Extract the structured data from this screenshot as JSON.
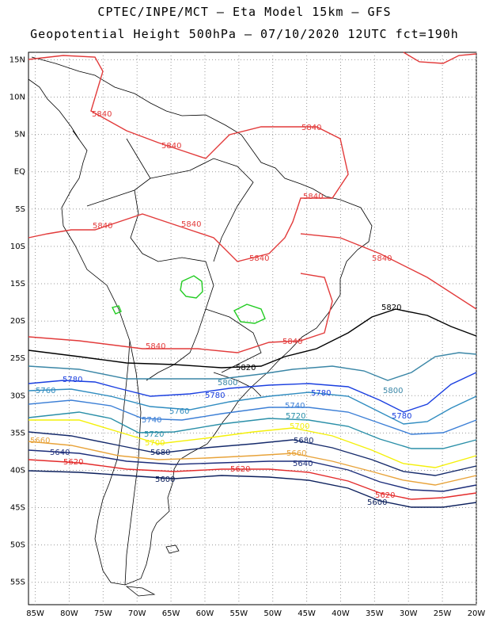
{
  "header": {
    "line1": "CPTEC/INPE/MCT –  Eta Model 15km – GFS",
    "line2": "Geopotential Height 500hPa – 07/10/2020 12UTC fct=190h"
  },
  "axes": {
    "lat_labels": [
      "15N",
      "10N",
      "5N",
      "EQ",
      "5S",
      "10S",
      "15S",
      "20S",
      "25S",
      "30S",
      "35S",
      "40S",
      "45S",
      "50S",
      "55S"
    ],
    "lon_labels": [
      "85W",
      "80W",
      "75W",
      "70W",
      "65W",
      "60W",
      "55W",
      "50W",
      "45W",
      "40W",
      "35W",
      "30W",
      "25W",
      "20W"
    ],
    "lat_range": [
      16,
      -58
    ],
    "lon_range": [
      -86,
      -20
    ],
    "grid": "dotted"
  },
  "contour_colors": {
    "5600": "#0b1f5c",
    "5620": "#e32b2b",
    "5640": "#1c2d7a",
    "5660": "#e8a33a",
    "5680": "#152a6b",
    "5700": "#f4f00a",
    "5720": "#2a8fa8",
    "5740": "#3c7fd6",
    "5760": "#2f8cc0",
    "5780": "#1a3fe0",
    "5800": "#3a86a6",
    "5820": "#000000",
    "5840": "#e23a3a",
    "low_closed": "#22cc22"
  },
  "contours": [
    {
      "value": "5840",
      "color_key": "5840",
      "labels": [
        "5840",
        "5840",
        "5840",
        "5840",
        "5840",
        "5840",
        "5840",
        "5840",
        "5840",
        "5840"
      ]
    },
    {
      "value": "5820",
      "color_key": "5820",
      "labels": [
        "5820",
        "5820"
      ]
    },
    {
      "value": "5800",
      "color_key": "5800",
      "labels": [
        "5800",
        "5800"
      ]
    },
    {
      "value": "5780",
      "color_key": "5780",
      "labels": [
        "5780",
        "5780",
        "5780",
        "5780"
      ]
    },
    {
      "value": "5760",
      "color_key": "5760",
      "labels": [
        "5760",
        "5760"
      ]
    },
    {
      "value": "5740",
      "color_key": "5740",
      "labels": [
        "5740",
        "5740"
      ]
    },
    {
      "value": "5720",
      "color_key": "5720",
      "labels": [
        "5720",
        "5720"
      ]
    },
    {
      "value": "5700",
      "color_key": "5700",
      "labels": [
        "5700",
        "5700"
      ]
    },
    {
      "value": "5680",
      "color_key": "5680",
      "labels": [
        "5680",
        "5680"
      ]
    },
    {
      "value": "5660",
      "color_key": "5660",
      "labels": [
        "5660",
        "5660"
      ]
    },
    {
      "value": "5640",
      "color_key": "5640",
      "labels": [
        "5640",
        "5640"
      ]
    },
    {
      "value": "5620",
      "color_key": "5620",
      "labels": [
        "5620",
        "5620",
        "5620"
      ]
    },
    {
      "value": "5600",
      "color_key": "5600",
      "labels": [
        "5600",
        "5600"
      ]
    }
  ]
}
